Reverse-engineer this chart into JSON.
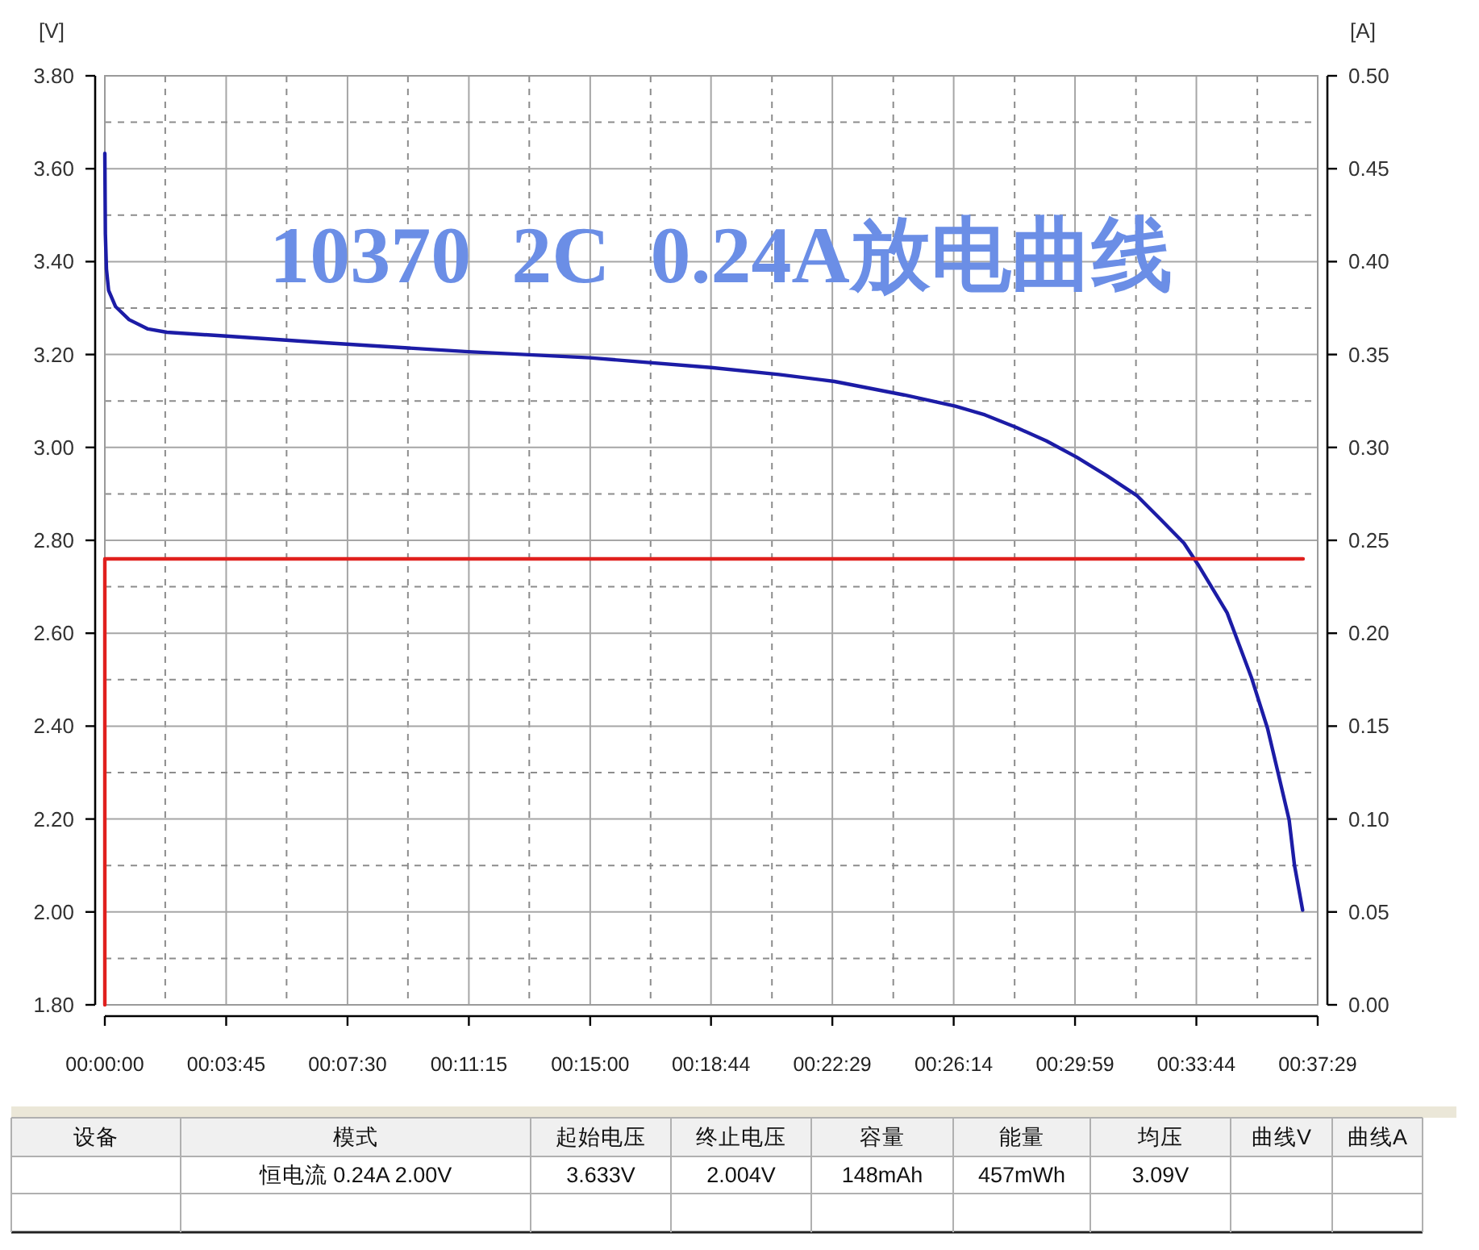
{
  "chart_data": {
    "type": "line",
    "title": "10370  2C  0.24A放电曲线",
    "ylabel": "[V]",
    "y2label": "[A]",
    "annotations": [
      "设备",
      "模式",
      "起始电压",
      "终止电压",
      "容量",
      "能量",
      "均压",
      "曲线V",
      "曲线A",
      "恒电流 0.24A 2.00V",
      "3.633V",
      "2.004V",
      "148mAh",
      "457mWh",
      "3.09V"
    ],
    "series": [
      {
        "color": "#1c1ca6",
        "x": [
          0,
          1,
          3,
          7,
          20,
          45,
          80,
          115,
          220,
          413,
          674,
          899,
          1124,
          1250,
          1353,
          1482,
          1577,
          1632,
          1690,
          1746,
          1802,
          1858,
          1914,
          1957,
          2001,
          2027,
          2081,
          2126,
          2156,
          2176,
          2196,
          2206,
          2221
        ],
        "values": [
          3.633,
          3.46,
          3.384,
          3.338,
          3.303,
          3.275,
          3.255,
          3.248,
          3.24,
          3.225,
          3.206,
          3.193,
          3.172,
          3.157,
          3.142,
          3.113,
          3.089,
          3.07,
          3.043,
          3.014,
          2.979,
          2.939,
          2.896,
          2.846,
          2.794,
          2.748,
          2.644,
          2.505,
          2.395,
          2.297,
          2.198,
          2.1,
          2.004
        ]
      },
      {
        "color": "#e0201e",
        "axis": "y2",
        "x": [
          0,
          0,
          2222
        ],
        "values": [
          0,
          0.24,
          0.24
        ]
      }
    ],
    "xlim": [
      0,
      2249
    ],
    "xticks": [
      {
        "value": 0,
        "label": "00:00:00"
      },
      {
        "value": 112,
        "label": null
      },
      {
        "value": 225,
        "label": "00:03:45"
      },
      {
        "value": 337,
        "label": null
      },
      {
        "value": 450,
        "label": "00:07:30"
      },
      {
        "value": 562,
        "label": null
      },
      {
        "value": 675,
        "label": "00:11:15"
      },
      {
        "value": 787,
        "label": null
      },
      {
        "value": 900,
        "label": "00:15:00"
      },
      {
        "value": 1012,
        "label": null
      },
      {
        "value": 1124,
        "label": "00:18:44"
      },
      {
        "value": 1237,
        "label": null
      },
      {
        "value": 1349,
        "label": "00:22:29"
      },
      {
        "value": 1462,
        "label": null
      },
      {
        "value": 1574,
        "label": "00:26:14"
      },
      {
        "value": 1687,
        "label": null
      },
      {
        "value": 1799,
        "label": "00:29:59"
      },
      {
        "value": 1912,
        "label": null
      },
      {
        "value": 2024,
        "label": "00:33:44"
      },
      {
        "value": 2137,
        "label": null
      },
      {
        "value": 2249,
        "label": "00:37:29"
      }
    ],
    "ylim": [
      1.8,
      3.8
    ],
    "yticks": [
      {
        "value": 1.8,
        "label": "1.80"
      },
      {
        "value": 1.9,
        "label": null
      },
      {
        "value": 2.0,
        "label": "2.00"
      },
      {
        "value": 2.1,
        "label": null
      },
      {
        "value": 2.2,
        "label": "2.20"
      },
      {
        "value": 2.3,
        "label": null
      },
      {
        "value": 2.4,
        "label": "2.40"
      },
      {
        "value": 2.5,
        "label": null
      },
      {
        "value": 2.6,
        "label": "2.60"
      },
      {
        "value": 2.7,
        "label": null
      },
      {
        "value": 2.8,
        "label": "2.80"
      },
      {
        "value": 2.9,
        "label": null
      },
      {
        "value": 3.0,
        "label": "3.00"
      },
      {
        "value": 3.1,
        "label": null
      },
      {
        "value": 3.2,
        "label": "3.20"
      },
      {
        "value": 3.3,
        "label": null
      },
      {
        "value": 3.4,
        "label": "3.40"
      },
      {
        "value": 3.5,
        "label": null
      },
      {
        "value": 3.6,
        "label": "3.60"
      },
      {
        "value": 3.7,
        "label": null
      },
      {
        "value": 3.8,
        "label": "3.80"
      }
    ],
    "y2lim": [
      0,
      0.5
    ],
    "y2ticks": [
      {
        "value": 0,
        "label": "0.00"
      },
      {
        "value": 0.05,
        "label": "0.05"
      },
      {
        "value": 0.1,
        "label": "0.10"
      },
      {
        "value": 0.15,
        "label": "0.15"
      },
      {
        "value": 0.2,
        "label": "0.20"
      },
      {
        "value": 0.25,
        "label": "0.25"
      },
      {
        "value": 0.3,
        "label": "0.30"
      },
      {
        "value": 0.35,
        "label": "0.35"
      },
      {
        "value": 0.4,
        "label": "0.40"
      },
      {
        "value": 0.45,
        "label": "0.45"
      },
      {
        "value": 0.5,
        "label": "0.50"
      }
    ],
    "grid": true
  }
}
